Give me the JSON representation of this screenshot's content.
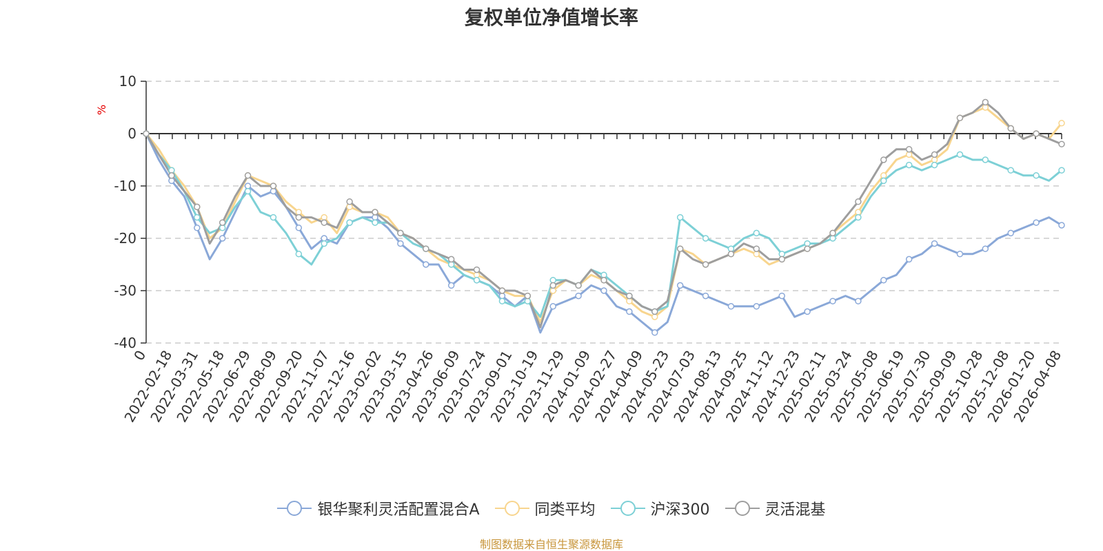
{
  "chart_data": {
    "type": "line",
    "title": "复权单位净值增长率",
    "ylabel": "%",
    "ylim": [
      -40,
      10
    ],
    "yticks": [
      10,
      0,
      -10,
      -20,
      -30,
      -40
    ],
    "grid": true,
    "legend_position": "bottom",
    "x_start_label": "0",
    "x_tick_labels": [
      "2022-02-18",
      "2022-03-31",
      "2022-05-18",
      "2022-06-29",
      "2022-08-09",
      "2022-09-20",
      "2022-11-07",
      "2022-12-16",
      "2023-02-02",
      "2023-03-15",
      "2023-04-26",
      "2023-06-09",
      "2023-07-24",
      "2023-09-01",
      "2023-10-19",
      "2023-11-29",
      "2024-01-09",
      "2024-02-27",
      "2024-04-09",
      "2024-05-23",
      "2024-07-03",
      "2024-08-13",
      "2024-09-25",
      "2024-11-12",
      "2024-12-23",
      "2025-02-11",
      "2025-03-24",
      "2025-05-08",
      "2025-06-19",
      "2025-07-30",
      "2025-09-09",
      "2025-10-28",
      "2025-12-08",
      "2026-01-20",
      "2026-04-08"
    ],
    "x": [
      0,
      0.5,
      1,
      1.5,
      2,
      2.5,
      3,
      3.5,
      4,
      4.5,
      5,
      5.5,
      6,
      6.5,
      7,
      7.5,
      8,
      8.5,
      9,
      9.5,
      10,
      10.5,
      11,
      11.5,
      12,
      12.5,
      13,
      13.5,
      14,
      14.5,
      15,
      15.5,
      16,
      16.5,
      17,
      17.5,
      18,
      18.5,
      19,
      19.5,
      20,
      20.5,
      21,
      21.5,
      22,
      22.5,
      23,
      23.5,
      24,
      24.5,
      25,
      25.5,
      26,
      26.5,
      27,
      27.5,
      28,
      28.5,
      29,
      29.5,
      30,
      30.5,
      31,
      31.5,
      32,
      32.5,
      33,
      33.5,
      34,
      34.5,
      35,
      35.5,
      36
    ],
    "series": [
      {
        "name": "银华聚利灵活配置混合A",
        "color": "#8aa8d8",
        "values": [
          0,
          -5,
          -9,
          -12,
          -18,
          -24,
          -20,
          -15,
          -10,
          -12,
          -11,
          -14,
          -18,
          -22,
          -20,
          -21,
          -17,
          -16,
          -16,
          -18,
          -21,
          -23,
          -25,
          -25,
          -29,
          -27,
          -28,
          -29,
          -31,
          -33,
          -31,
          -38,
          -33,
          -32,
          -31,
          -29,
          -30,
          -33,
          -34,
          -36,
          -38,
          -36,
          -29,
          -30,
          -31,
          -32,
          -33,
          -33,
          -33,
          -32,
          -31,
          -35,
          -34,
          -33,
          -32,
          -31,
          -32,
          -30,
          -28,
          -27,
          -24,
          -23,
          -21,
          -22,
          -23,
          -23,
          -22,
          -20,
          -19,
          -18,
          -17,
          -16,
          -17.5
        ]
      },
      {
        "name": "同类平均",
        "color": "#f8d58e",
        "values": [
          0,
          -3,
          -7,
          -10,
          -14,
          -20,
          -18,
          -13,
          -8,
          -9,
          -10,
          -13,
          -15,
          -17,
          -16,
          -19,
          -14,
          -15,
          -15,
          -16,
          -19,
          -20,
          -22,
          -24,
          -25,
          -26,
          -27,
          -28,
          -30,
          -31,
          -31,
          -36,
          -30,
          -28,
          -29,
          -27,
          -28,
          -30,
          -32,
          -34,
          -35,
          -33,
          -22,
          -23,
          -25,
          -24,
          -23,
          -22,
          -23,
          -25,
          -24,
          -23,
          -22,
          -21,
          -19,
          -17,
          -15,
          -11,
          -8,
          -5,
          -4,
          -6,
          -5,
          -3,
          3,
          4,
          5,
          3,
          1,
          -1,
          0,
          -1,
          2
        ]
      },
      {
        "name": "沪深300",
        "color": "#7dd0d6",
        "values": [
          0,
          -4,
          -7,
          -11,
          -16,
          -19,
          -18,
          -14,
          -11,
          -15,
          -16,
          -19,
          -23,
          -25,
          -21,
          -20,
          -17,
          -16,
          -17,
          -17,
          -19,
          -21,
          -22,
          -23,
          -25,
          -27,
          -28,
          -29,
          -32,
          -33,
          -32,
          -35,
          -28,
          -28,
          -29,
          -26,
          -27,
          -29,
          -31,
          -33,
          -34,
          -33,
          -16,
          -18,
          -20,
          -21,
          -22,
          -20,
          -19,
          -20,
          -23,
          -22,
          -21,
          -21,
          -20,
          -18,
          -16,
          -12,
          -9,
          -7,
          -6,
          -7,
          -6,
          -5,
          -4,
          -5,
          -5,
          -6,
          -7,
          -8,
          -8,
          -9,
          -7
        ]
      },
      {
        "name": "灵活混基",
        "color": "#9e9e9e",
        "values": [
          0,
          -4,
          -8,
          -11,
          -14,
          -21,
          -17,
          -12,
          -8,
          -10,
          -10,
          -14,
          -16,
          -16,
          -17,
          -18,
          -13,
          -15,
          -15,
          -17,
          -19,
          -20,
          -22,
          -23,
          -24,
          -26,
          -26,
          -28,
          -30,
          -30,
          -31,
          -37,
          -29,
          -28,
          -29,
          -26,
          -28,
          -30,
          -31,
          -33,
          -34,
          -32,
          -22,
          -24,
          -25,
          -24,
          -23,
          -21,
          -22,
          -24,
          -24,
          -23,
          -22,
          -21,
          -19,
          -16,
          -13,
          -9,
          -5,
          -3,
          -3,
          -5,
          -4,
          -2,
          3,
          4,
          6,
          4,
          1,
          -1,
          0,
          -1,
          -2
        ]
      }
    ],
    "markers_every": 2
  },
  "legend": {
    "items": [
      {
        "label": "银华聚利灵活配置混合A",
        "color": "#8aa8d8"
      },
      {
        "label": "同类平均",
        "color": "#f8d58e"
      },
      {
        "label": "沪深300",
        "color": "#7dd0d6"
      },
      {
        "label": "灵活混基",
        "color": "#9e9e9e"
      }
    ]
  },
  "footer": {
    "source": "制图数据来自恒生聚源数据库"
  }
}
